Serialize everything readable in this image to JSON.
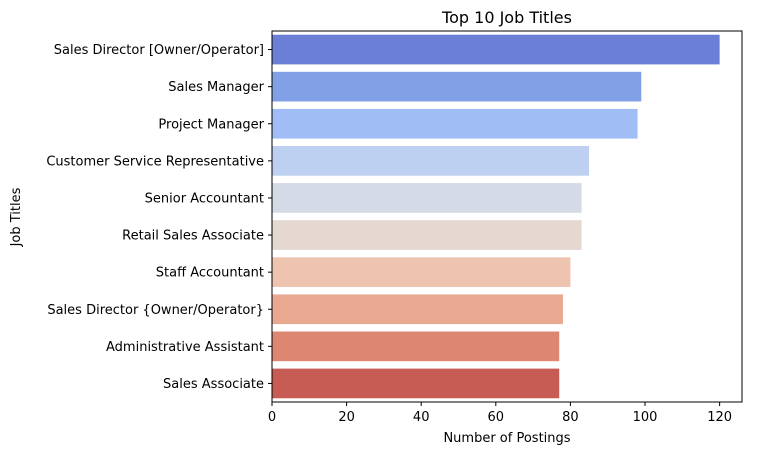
{
  "chart_data": {
    "type": "bar",
    "orientation": "horizontal",
    "title": "Top 10 Job Titles",
    "xlabel": "Number of Postings",
    "ylabel": "Job Titles",
    "xlim": [
      0,
      126
    ],
    "xticks": [
      0,
      20,
      40,
      60,
      80,
      100,
      120
    ],
    "grid": false,
    "legend": "none",
    "palette": "coolwarm",
    "categories": [
      "Sales Director [Owner/Operator]",
      "Sales Manager",
      "Project Manager",
      "Customer Service Representative",
      "Senior Accountant",
      "Retail Sales Associate",
      "Staff Accountant",
      "Sales Director {Owner/Operator}",
      "Administrative Assistant",
      "Sales Associate"
    ],
    "values": [
      120,
      99,
      98,
      85,
      83,
      83,
      80,
      78,
      77,
      77
    ],
    "colors": [
      "#6a7fd5",
      "#82a0e6",
      "#a0bdf6",
      "#bdd0f2",
      "#d4dbe6",
      "#e4d8d1",
      "#eec4b1",
      "#e8a990",
      "#dd8772",
      "#c65c53"
    ]
  }
}
